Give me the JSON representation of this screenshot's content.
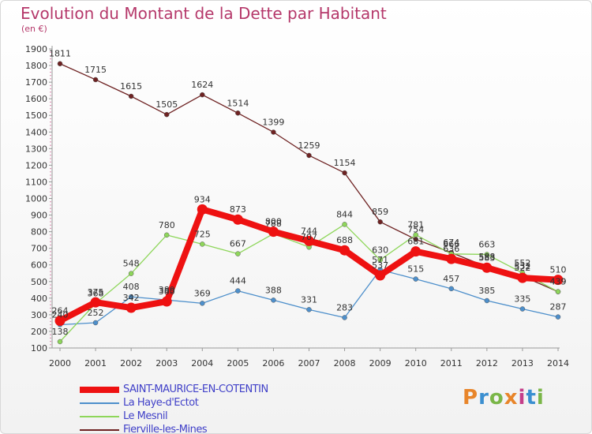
{
  "title": "Evolution du Montant de la Dette par Habitant",
  "subtitle": "(en €)",
  "logo": {
    "text": "Proxiti",
    "colors": [
      "#e8852a",
      "#3b8fd0",
      "#7ab648",
      "#e8852a",
      "#c53e8a",
      "#3b8fd0",
      "#7ab648"
    ]
  },
  "chart_data": {
    "type": "line",
    "x": [
      "2000",
      "2001",
      "2002",
      "2003",
      "2004",
      "2005",
      "2006",
      "2007",
      "2008",
      "2009",
      "2010",
      "2011",
      "2012",
      "2013",
      "2014"
    ],
    "ylim": [
      100,
      1900
    ],
    "yticks": [
      100,
      200,
      300,
      400,
      500,
      600,
      700,
      800,
      900,
      1000,
      1100,
      1200,
      1300,
      1400,
      1500,
      1600,
      1700,
      1800,
      1900
    ],
    "grid": false,
    "legend_position": "bottom-left",
    "series": [
      {
        "name": "SAINT-MAURICE-EN-COTENTIN",
        "color": "#ee1111",
        "values": [
          264,
          375,
          342,
          380,
          934,
          873,
          800,
          744,
          688,
          537,
          681,
          636,
          583,
          522,
          510
        ]
      },
      {
        "name": "La Haye-d'Ectot",
        "color": "#4d8fcb",
        "values": [
          240,
          252,
          408,
          389,
          369,
          444,
          388,
          331,
          283,
          571,
          515,
          457,
          385,
          335,
          287
        ]
      },
      {
        "name": "Le Mesnil",
        "color": "#8ed65a",
        "values": [
          138,
          368,
          548,
          780,
          725,
          667,
          788,
          707,
          844,
          630,
          781,
          666,
          663,
          552,
          439
        ]
      },
      {
        "name": "Fierville-les-Mines",
        "color": "#6e2222",
        "values": [
          1811,
          1715,
          1615,
          1505,
          1624,
          1514,
          1399,
          1259,
          1154,
          859,
          754,
          674,
          588,
          532,
          439
        ]
      }
    ]
  }
}
